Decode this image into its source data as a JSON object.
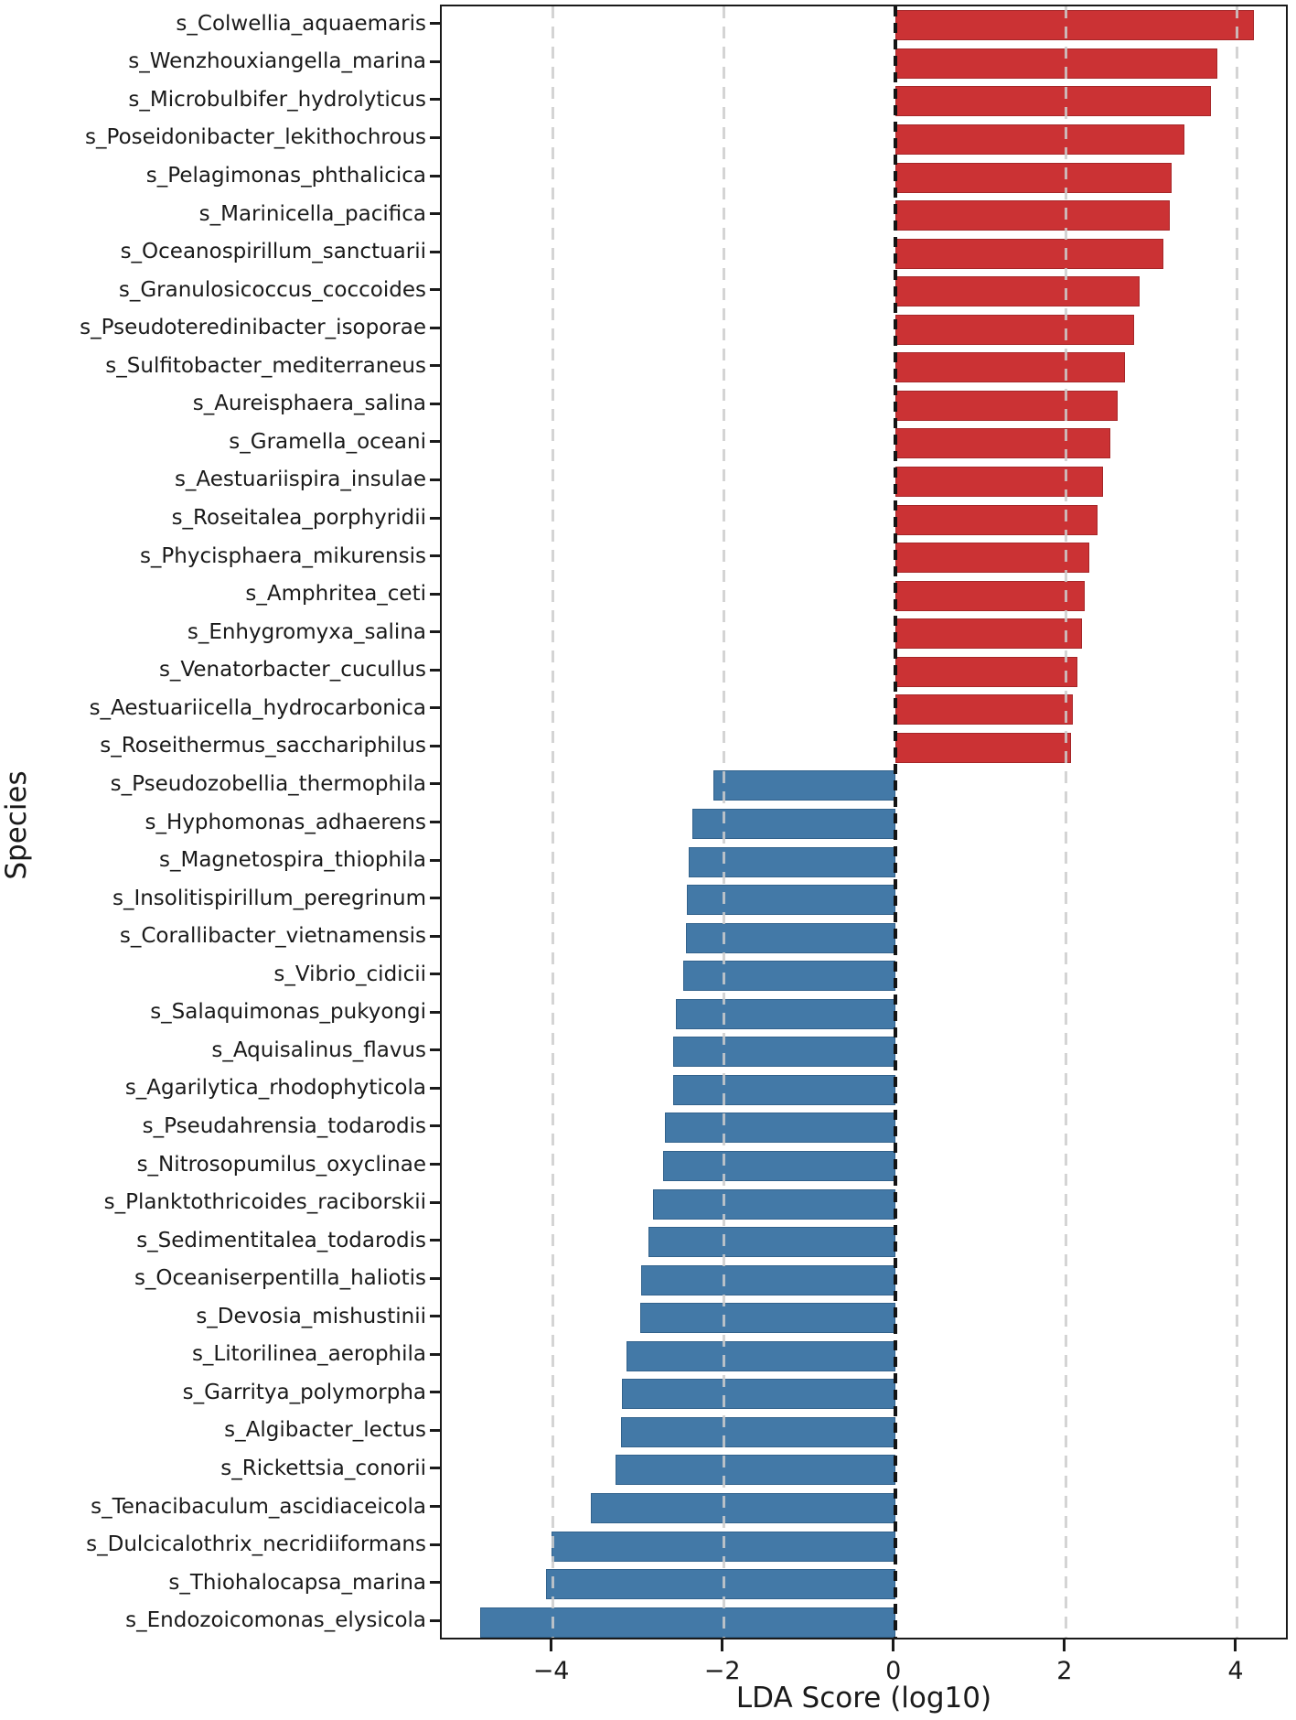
{
  "chart_data": {
    "type": "bar",
    "orientation": "horizontal",
    "title": "",
    "xlabel": "LDA Score (log10)",
    "ylabel": "Species",
    "xlim": [
      -5.3,
      4.61
    ],
    "xticks": [
      {
        "value": -4,
        "label": "−4"
      },
      {
        "value": -2,
        "label": "−2"
      },
      {
        "value": 0,
        "label": "0"
      },
      {
        "value": 2,
        "label": "2"
      },
      {
        "value": 4,
        "label": "4"
      }
    ],
    "grid": {
      "style": "vertical dashed gridlines at ticks, drawn over bars",
      "zero_line": "black dashed vertical at 0"
    },
    "colors": {
      "positive_fill": "#cb3234",
      "positive_edge": "#a62628",
      "negative_fill": "#4379a7",
      "negative_edge": "#32628c",
      "grid": "#cdcdcd",
      "zero_line": "#141414",
      "text": "#1a1a1a"
    },
    "legend": null,
    "bars": [
      {
        "species": "s_Colwellia_aquaemaris",
        "lda": 4.19,
        "group": "positive"
      },
      {
        "species": "s_Wenzhouxiangella_marina",
        "lda": 3.77,
        "group": "positive"
      },
      {
        "species": "s_Microbulbifer_hydrolyticus",
        "lda": 3.69,
        "group": "positive"
      },
      {
        "species": "s_Poseidonibacter_lekithochrous",
        "lda": 3.38,
        "group": "positive"
      },
      {
        "species": "s_Pelagimonas_phthalicica",
        "lda": 3.23,
        "group": "positive"
      },
      {
        "species": "s_Marinicella_pacifica",
        "lda": 3.21,
        "group": "positive"
      },
      {
        "species": "s_Oceanospirillum_sanctuarii",
        "lda": 3.13,
        "group": "positive"
      },
      {
        "species": "s_Granulosicoccus_coccoides",
        "lda": 2.86,
        "group": "positive"
      },
      {
        "species": "s_Pseudoteredinibacter_isoporae",
        "lda": 2.79,
        "group": "positive"
      },
      {
        "species": "s_Sulfitobacter_mediterraneus",
        "lda": 2.69,
        "group": "positive"
      },
      {
        "species": "s_Aureisphaera_salina",
        "lda": 2.6,
        "group": "positive"
      },
      {
        "species": "s_Gramella_oceani",
        "lda": 2.52,
        "group": "positive"
      },
      {
        "species": "s_Aestuariispira_insulae",
        "lda": 2.43,
        "group": "positive"
      },
      {
        "species": "s_Roseitalea_porphyridii",
        "lda": 2.37,
        "group": "positive"
      },
      {
        "species": "s_Phycisphaera_mikurensis",
        "lda": 2.27,
        "group": "positive"
      },
      {
        "species": "s_Amphritea_ceti",
        "lda": 2.22,
        "group": "positive"
      },
      {
        "species": "s_Enhygromyxa_salina",
        "lda": 2.18,
        "group": "positive"
      },
      {
        "species": "s_Venatorbacter_cucullus",
        "lda": 2.13,
        "group": "positive"
      },
      {
        "species": "s_Aestuariicella_hydrocarbonica",
        "lda": 2.08,
        "group": "positive"
      },
      {
        "species": "s_Roseithermus_sacchariphilus",
        "lda": 2.05,
        "group": "positive"
      },
      {
        "species": "s_Pseudozobellia_thermophila",
        "lda": -2.13,
        "group": "negative"
      },
      {
        "species": "s_Hyphomonas_adhaerens",
        "lda": -2.37,
        "group": "negative"
      },
      {
        "species": "s_Magnetospira_thiophila",
        "lda": -2.41,
        "group": "negative"
      },
      {
        "species": "s_Insolitispirillum_peregrinum",
        "lda": -2.43,
        "group": "negative"
      },
      {
        "species": "s_Corallibacter_vietnamensis",
        "lda": -2.45,
        "group": "negative"
      },
      {
        "species": "s_Vibrio_cidicii",
        "lda": -2.48,
        "group": "negative"
      },
      {
        "species": "s_Salaquimonas_pukyongi",
        "lda": -2.56,
        "group": "negative"
      },
      {
        "species": "s_Aquisalinus_flavus",
        "lda": -2.59,
        "group": "negative"
      },
      {
        "species": "s_Agarilytica_rhodophyticola",
        "lda": -2.6,
        "group": "negative"
      },
      {
        "species": "s_Pseudahrensia_todarodis",
        "lda": -2.69,
        "group": "negative"
      },
      {
        "species": "s_Nitrosopumilus_oxyclinae",
        "lda": -2.71,
        "group": "negative"
      },
      {
        "species": "s_Planktothricoides_raciborskii",
        "lda": -2.83,
        "group": "negative"
      },
      {
        "species": "s_Sedimentitalea_todarodis",
        "lda": -2.88,
        "group": "negative"
      },
      {
        "species": "s_Oceaniserpentilla_haliotis",
        "lda": -2.97,
        "group": "negative"
      },
      {
        "species": "s_Devosia_mishustinii",
        "lda": -2.98,
        "group": "negative"
      },
      {
        "species": "s_Litorilinea_aerophila",
        "lda": -3.14,
        "group": "negative"
      },
      {
        "species": "s_Garritya_polymorpha",
        "lda": -3.19,
        "group": "negative"
      },
      {
        "species": "s_Algibacter_lectus",
        "lda": -3.21,
        "group": "negative"
      },
      {
        "species": "s_Rickettsia_conorii",
        "lda": -3.27,
        "group": "negative"
      },
      {
        "species": "s_Tenacibaculum_ascidiaceicola",
        "lda": -3.56,
        "group": "negative"
      },
      {
        "species": "s_Dulcicalothrix_necridiiformans",
        "lda": -4.02,
        "group": "negative"
      },
      {
        "species": "s_Thiohalocapsa_marina",
        "lda": -4.08,
        "group": "negative"
      },
      {
        "species": "s_Endozoicomonas_elysicola",
        "lda": -4.85,
        "group": "negative"
      }
    ]
  }
}
